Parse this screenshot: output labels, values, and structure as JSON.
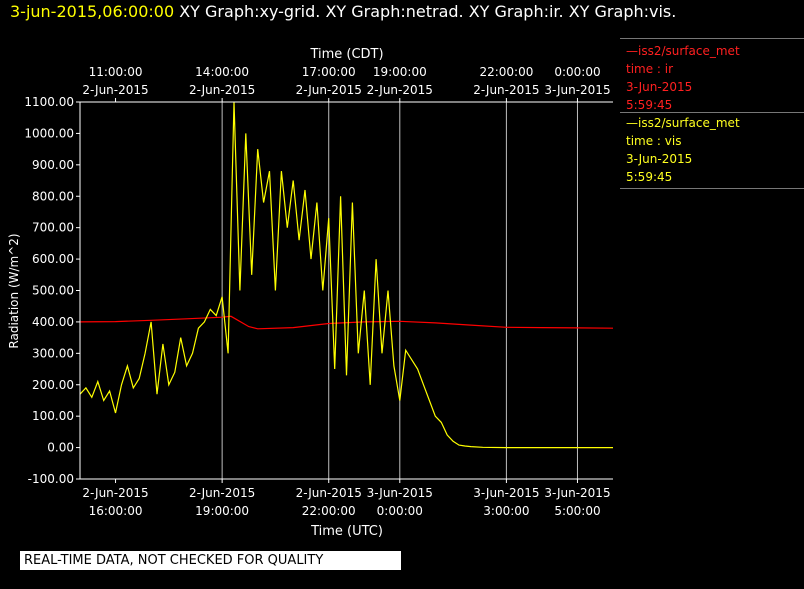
{
  "header": {
    "date_label": "3-jun-2015,06:00:00",
    "graphs_label": " XY Graph:xy-grid.  XY Graph:netrad.  XY Graph:ir.  XY Graph:vis."
  },
  "legend": {
    "ir": {
      "line1": "—iss2/surface_met",
      "line2": "time : ir",
      "line3": "3-Jun-2015",
      "line4": "5:59:45"
    },
    "vis": {
      "line1": "—iss2/surface_met",
      "line2": "time : vis",
      "line3": "3-Jun-2015",
      "line4": "5:59:45"
    }
  },
  "notice": "REAL-TIME DATA, NOT CHECKED FOR QUALITY",
  "colors": {
    "ir": "#ff0000",
    "vis": "#ffff00",
    "axis": "#ffffff",
    "grid": "#ffffff",
    "background": "#000000"
  },
  "chart_data": {
    "type": "line",
    "title": "",
    "xlabel": "Time (UTC)",
    "x2label": "Time (CDT)",
    "ylabel": "Radiation (W/m^2)",
    "ylim": [
      -100,
      1100
    ],
    "xlim": [
      "2015-06-02T15:00",
      "2015-06-03T06:00"
    ],
    "yticks": [
      "-100.00",
      "0.00",
      "100.00",
      "200.00",
      "300.00",
      "400.00",
      "500.00",
      "600.00",
      "700.00",
      "800.00",
      "900.00",
      "1000.00",
      "1100.00"
    ],
    "xticks_utc": [
      {
        "t": "2015-06-02T16:00",
        "l1": "2-Jun-2015",
        "l2": "16:00:00"
      },
      {
        "t": "2015-06-02T19:00",
        "l1": "2-Jun-2015",
        "l2": "19:00:00"
      },
      {
        "t": "2015-06-02T22:00",
        "l1": "2-Jun-2015",
        "l2": "22:00:00"
      },
      {
        "t": "2015-06-03T00:00",
        "l1": "3-Jun-2015",
        "l2": "0:00:00"
      },
      {
        "t": "2015-06-03T03:00",
        "l1": "3-Jun-2015",
        "l2": "3:00:00"
      },
      {
        "t": "2015-06-03T05:00",
        "l1": "3-Jun-2015",
        "l2": "5:00:00"
      }
    ],
    "xticks_cdt": [
      {
        "t": "2015-06-02T16:00",
        "l1": "11:00:00",
        "l2": "2-Jun-2015"
      },
      {
        "t": "2015-06-02T19:00",
        "l1": "14:00:00",
        "l2": "2-Jun-2015"
      },
      {
        "t": "2015-06-02T22:00",
        "l1": "17:00:00",
        "l2": "2-Jun-2015"
      },
      {
        "t": "2015-06-03T00:00",
        "l1": "19:00:00",
        "l2": "2-Jun-2015"
      },
      {
        "t": "2015-06-03T03:00",
        "l1": "22:00:00",
        "l2": "2-Jun-2015"
      },
      {
        "t": "2015-06-03T05:00",
        "l1": "0:00:00",
        "l2": "3-Jun-2015"
      }
    ],
    "gridlines": [
      "2015-06-02T19:00",
      "2015-06-02T22:00",
      "2015-06-03T00:00",
      "2015-06-03T03:00",
      "2015-06-03T05:00"
    ],
    "grid": "vertical",
    "legend_position": "right",
    "series": [
      {
        "name": "iss2/surface_met time : ir",
        "color": "#ff0000",
        "x": [
          "2015-06-02T15:00",
          "2015-06-02T16:00",
          "2015-06-02T17:00",
          "2015-06-02T18:00",
          "2015-06-02T19:00",
          "2015-06-02T19:15",
          "2015-06-02T19:45",
          "2015-06-02T20:00",
          "2015-06-02T21:00",
          "2015-06-02T22:00",
          "2015-06-02T23:00",
          "2015-06-03T00:00",
          "2015-06-03T01:00",
          "2015-06-03T02:00",
          "2015-06-03T03:00",
          "2015-06-03T04:00",
          "2015-06-03T05:00",
          "2015-06-03T06:00"
        ],
        "values": [
          400,
          401,
          405,
          410,
          415,
          418,
          385,
          378,
          382,
          395,
          400,
          402,
          397,
          390,
          383,
          382,
          381,
          380
        ]
      },
      {
        "name": "iss2/surface_met time : vis",
        "color": "#ffff00",
        "x": [
          "2015-06-02T15:00",
          "2015-06-02T15:10",
          "2015-06-02T15:20",
          "2015-06-02T15:30",
          "2015-06-02T15:40",
          "2015-06-02T15:50",
          "2015-06-02T16:00",
          "2015-06-02T16:10",
          "2015-06-02T16:20",
          "2015-06-02T16:30",
          "2015-06-02T16:40",
          "2015-06-02T16:50",
          "2015-06-02T17:00",
          "2015-06-02T17:10",
          "2015-06-02T17:20",
          "2015-06-02T17:30",
          "2015-06-02T17:40",
          "2015-06-02T17:50",
          "2015-06-02T18:00",
          "2015-06-02T18:10",
          "2015-06-02T18:20",
          "2015-06-02T18:30",
          "2015-06-02T18:40",
          "2015-06-02T18:50",
          "2015-06-02T19:00",
          "2015-06-02T19:10",
          "2015-06-02T19:20",
          "2015-06-02T19:30",
          "2015-06-02T19:40",
          "2015-06-02T19:50",
          "2015-06-02T20:00",
          "2015-06-02T20:10",
          "2015-06-02T20:20",
          "2015-06-02T20:30",
          "2015-06-02T20:40",
          "2015-06-02T20:50",
          "2015-06-02T21:00",
          "2015-06-02T21:10",
          "2015-06-02T21:20",
          "2015-06-02T21:30",
          "2015-06-02T21:40",
          "2015-06-02T21:50",
          "2015-06-02T22:00",
          "2015-06-02T22:10",
          "2015-06-02T22:20",
          "2015-06-02T22:30",
          "2015-06-02T22:40",
          "2015-06-02T22:50",
          "2015-06-02T23:00",
          "2015-06-02T23:10",
          "2015-06-02T23:20",
          "2015-06-02T23:30",
          "2015-06-02T23:40",
          "2015-06-02T23:50",
          "2015-06-03T00:00",
          "2015-06-03T00:10",
          "2015-06-03T00:20",
          "2015-06-03T00:30",
          "2015-06-03T00:40",
          "2015-06-03T00:50",
          "2015-06-03T01:00",
          "2015-06-03T01:10",
          "2015-06-03T01:20",
          "2015-06-03T01:30",
          "2015-06-03T01:40",
          "2015-06-03T01:50",
          "2015-06-03T02:00",
          "2015-06-03T02:20",
          "2015-06-03T03:00",
          "2015-06-03T04:00",
          "2015-06-03T05:00",
          "2015-06-03T06:00"
        ],
        "values": [
          170,
          190,
          160,
          210,
          150,
          180,
          110,
          200,
          260,
          190,
          220,
          300,
          400,
          170,
          330,
          200,
          240,
          350,
          260,
          300,
          380,
          400,
          440,
          420,
          480,
          300,
          1100,
          500,
          1000,
          550,
          950,
          780,
          880,
          500,
          880,
          700,
          850,
          660,
          820,
          600,
          780,
          500,
          730,
          250,
          800,
          230,
          780,
          300,
          500,
          200,
          600,
          300,
          500,
          260,
          150,
          310,
          280,
          250,
          200,
          150,
          100,
          80,
          40,
          20,
          8,
          5,
          3,
          1,
          0,
          0,
          0,
          0
        ]
      }
    ]
  }
}
